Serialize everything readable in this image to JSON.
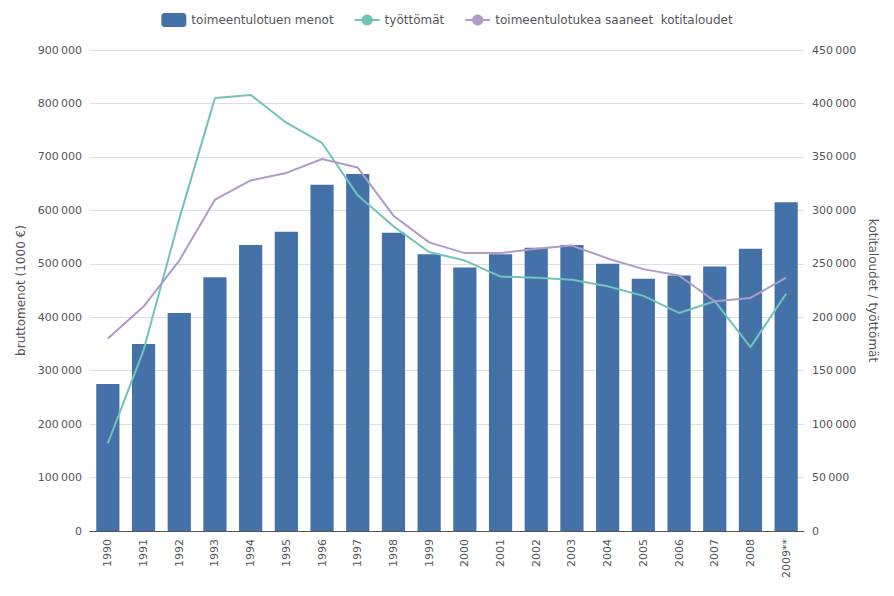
{
  "chart_data": {
    "type": "bar",
    "categories": [
      "1990",
      "1991",
      "1992",
      "1993",
      "1994",
      "1995",
      "1996",
      "1997",
      "1998",
      "1999",
      "2000",
      "2001",
      "2002",
      "2003",
      "2004",
      "2005",
      "2006",
      "2007",
      "2008",
      "2009**"
    ],
    "series": [
      {
        "name": "toimeentulotuen menot",
        "type": "bar",
        "color": "#4472a8",
        "values": [
          275000,
          350000,
          408000,
          475000,
          535000,
          560000,
          648000,
          668000,
          558000,
          518000,
          493000,
          518000,
          530000,
          535000,
          500000,
          472000,
          478000,
          495000,
          528000,
          615000
        ]
      },
      {
        "name": "työttömät",
        "type": "line",
        "axis": "y2",
        "color": "#70c4b8",
        "values": [
          82000,
          169000,
          292000,
          405000,
          408000,
          382000,
          363000,
          314000,
          285000,
          261000,
          253000,
          238000,
          237000,
          235000,
          229000,
          220000,
          204000,
          215000,
          172000,
          222000
        ]
      },
      {
        "name": "toimeentulotukea saaneet  kotitaloudet",
        "type": "line",
        "axis": "y2",
        "color": "#b09ac8",
        "values": [
          180000,
          210000,
          253000,
          310000,
          328000,
          335000,
          348000,
          340000,
          295000,
          270000,
          260000,
          260000,
          264000,
          267000,
          255000,
          245000,
          239000,
          215000,
          218000,
          237000
        ]
      }
    ],
    "ylabel": "bruttomenot (1000 €)",
    "y2label": "kotitaloudet / työttömät",
    "ylim": [
      0,
      900000
    ],
    "yticks": [
      0,
      {
        "value": 100000,
        "label": "100 000"
      },
      {
        "value": 200000,
        "label": "200 000"
      },
      {
        "value": 300000,
        "label": "300 000"
      },
      {
        "value": 400000,
        "label": "400 000"
      },
      {
        "value": 500000,
        "label": "500 000"
      },
      {
        "value": 600000,
        "label": "600 000"
      },
      {
        "value": 700000,
        "label": "700 000"
      },
      {
        "value": 800000,
        "label": "800 000"
      },
      {
        "value": 900000,
        "label": "900 000"
      }
    ],
    "y2lim": [
      0,
      450000
    ],
    "y2ticks": [
      0,
      {
        "value": 50000,
        "label": "50 000"
      },
      {
        "value": 100000,
        "label": "100 000"
      },
      {
        "value": 150000,
        "label": "150 000"
      },
      {
        "value": 200000,
        "label": "200 000"
      },
      {
        "value": 250000,
        "label": "250 000"
      },
      {
        "value": 300000,
        "label": "300 000"
      },
      {
        "value": 350000,
        "label": "350 000"
      },
      {
        "value": 400000,
        "label": "400 000"
      },
      {
        "value": 450000,
        "label": "450 000"
      }
    ],
    "grid": true,
    "legend": "top"
  }
}
